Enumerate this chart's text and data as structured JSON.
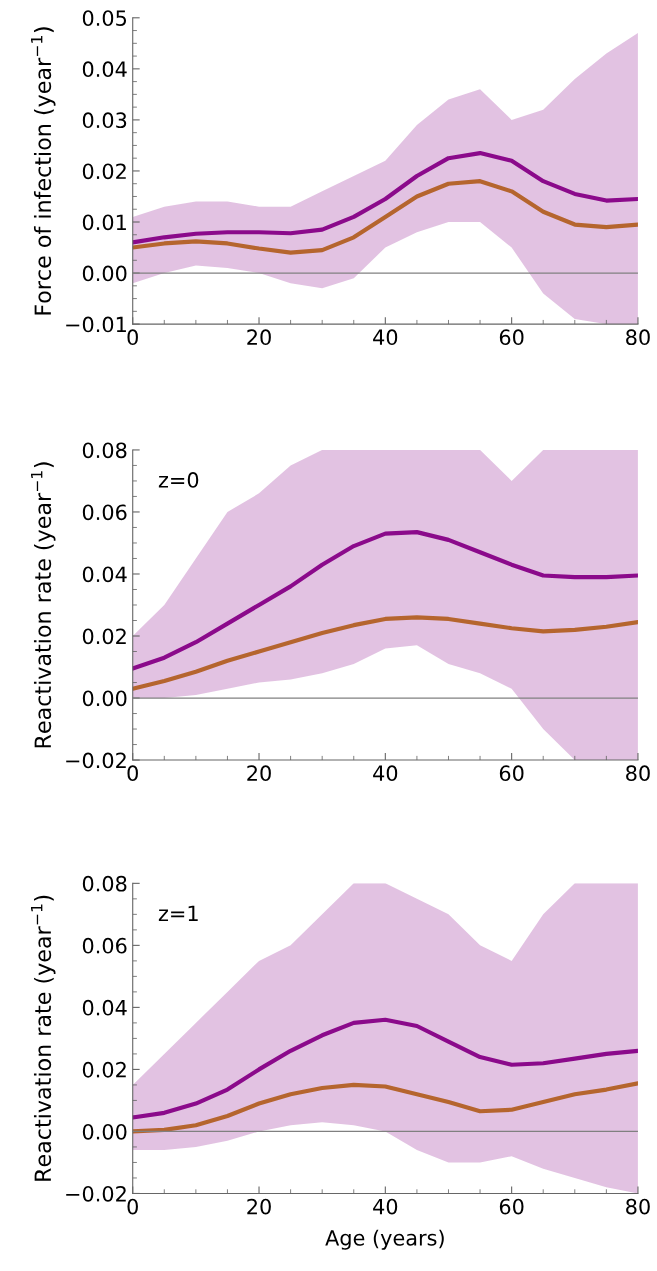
{
  "chart_data": [
    {
      "type": "line",
      "ylabel": "Force of infection (year$^{−1}$)",
      "x": [
        0,
        5,
        10,
        15,
        20,
        25,
        30,
        35,
        40,
        45,
        50,
        55,
        60,
        65,
        70,
        75,
        80
      ],
      "series": [
        {
          "color": "#8b0a8b",
          "values": [
            0.006,
            0.007,
            0.0077,
            0.008,
            0.008,
            0.0078,
            0.0085,
            0.011,
            0.0145,
            0.019,
            0.0225,
            0.0235,
            0.022,
            0.018,
            0.0155,
            0.0142,
            0.0145
          ],
          "lower": [
            -0.002,
            0.0,
            0.0015,
            0.001,
            0.0,
            -0.002,
            -0.003,
            -0.001,
            0.005,
            0.008,
            0.01,
            0.01,
            0.005,
            -0.004,
            -0.009,
            -0.01,
            -0.01
          ],
          "upper": [
            0.011,
            0.013,
            0.014,
            0.014,
            0.013,
            0.013,
            0.016,
            0.019,
            0.022,
            0.029,
            0.034,
            0.036,
            0.03,
            0.032,
            0.038,
            0.043,
            0.047
          ]
        },
        {
          "color": "#b5652e",
          "values": [
            0.005,
            0.0058,
            0.0062,
            0.0058,
            0.0048,
            0.004,
            0.0045,
            0.007,
            0.011,
            0.015,
            0.0175,
            0.018,
            0.016,
            0.012,
            0.0095,
            0.009,
            0.0095
          ]
        }
      ],
      "xlim": [
        0,
        80
      ],
      "xticks": [
        0,
        20,
        40,
        60,
        80
      ],
      "ylim": [
        -0.01,
        0.05
      ],
      "yticks": [
        {
          "value": -0.01,
          "label": "−0.01"
        },
        {
          "value": 0,
          "label": "0.00"
        },
        {
          "value": 0.01,
          "label": "0.01"
        },
        {
          "value": 0.02,
          "label": "0.02"
        },
        {
          "value": 0.03,
          "label": "0.03"
        },
        {
          "value": 0.04,
          "label": "0.04"
        },
        {
          "value": 0.05,
          "label": "0.05"
        }
      ],
      "ref_lines": [
        {
          "axis": "y",
          "value": 0,
          "color": "#808080"
        }
      ]
    },
    {
      "type": "line",
      "ylabel": "Reactivation rate (year$^{−1}$)",
      "annotations": [
        "z=0"
      ],
      "x": [
        0,
        5,
        10,
        15,
        20,
        25,
        30,
        35,
        40,
        45,
        50,
        55,
        60,
        65,
        70,
        75,
        80
      ],
      "series": [
        {
          "color": "#8b0a8b",
          "values": [
            0.0095,
            0.013,
            0.018,
            0.024,
            0.03,
            0.036,
            0.043,
            0.049,
            0.053,
            0.0535,
            0.051,
            0.047,
            0.043,
            0.0395,
            0.039,
            0.039,
            0.0395
          ],
          "lower": [
            0.0,
            0.0,
            0.001,
            0.003,
            0.005,
            0.006,
            0.008,
            0.011,
            0.016,
            0.017,
            0.011,
            0.008,
            0.003,
            -0.01,
            -0.02,
            -0.02,
            -0.02
          ],
          "upper": [
            0.02,
            0.03,
            0.045,
            0.06,
            0.066,
            0.075,
            0.08,
            0.08,
            0.08,
            0.08,
            0.08,
            0.08,
            0.07,
            0.08,
            0.08,
            0.08,
            0.08
          ]
        },
        {
          "color": "#b5652e",
          "values": [
            0.003,
            0.0055,
            0.0085,
            0.012,
            0.015,
            0.018,
            0.021,
            0.0235,
            0.0255,
            0.026,
            0.0255,
            0.024,
            0.0225,
            0.0215,
            0.022,
            0.023,
            0.0245
          ]
        }
      ],
      "xlim": [
        0,
        80
      ],
      "xticks": [
        0,
        20,
        40,
        60,
        80
      ],
      "ylim": [
        -0.02,
        0.08
      ],
      "yticks": [
        {
          "value": -0.02,
          "label": "−0.02"
        },
        {
          "value": 0,
          "label": "0.00"
        },
        {
          "value": 0.02,
          "label": "0.02"
        },
        {
          "value": 0.04,
          "label": "0.04"
        },
        {
          "value": 0.06,
          "label": "0.06"
        },
        {
          "value": 0.08,
          "label": "0.08"
        }
      ],
      "ref_lines": [
        {
          "axis": "y",
          "value": 0,
          "color": "#808080"
        }
      ]
    },
    {
      "type": "line",
      "ylabel": "Reactivation rate (year$^{−1}$)",
      "xlabel": "Age (years)",
      "annotations": [
        "z=1"
      ],
      "x": [
        0,
        5,
        10,
        15,
        20,
        25,
        30,
        35,
        40,
        45,
        50,
        55,
        60,
        65,
        70,
        75,
        80
      ],
      "series": [
        {
          "color": "#8b0a8b",
          "values": [
            0.0045,
            0.006,
            0.009,
            0.0135,
            0.02,
            0.026,
            0.031,
            0.035,
            0.036,
            0.034,
            0.029,
            0.024,
            0.0215,
            0.022,
            0.0235,
            0.025,
            0.026
          ],
          "lower": [
            -0.006,
            -0.006,
            -0.005,
            -0.003,
            0.0,
            0.002,
            0.003,
            0.002,
            0.0,
            -0.006,
            -0.01,
            -0.01,
            -0.008,
            -0.012,
            -0.015,
            -0.018,
            -0.02
          ],
          "upper": [
            0.015,
            0.025,
            0.035,
            0.045,
            0.055,
            0.06,
            0.07,
            0.08,
            0.08,
            0.075,
            0.07,
            0.06,
            0.055,
            0.07,
            0.08,
            0.08,
            0.08
          ]
        },
        {
          "color": "#b5652e",
          "values": [
            0.0,
            0.0005,
            0.002,
            0.005,
            0.009,
            0.012,
            0.014,
            0.015,
            0.0145,
            0.012,
            0.0095,
            0.0065,
            0.007,
            0.0095,
            0.012,
            0.0135,
            0.0155
          ]
        }
      ],
      "xlim": [
        0,
        80
      ],
      "xticks": [
        0,
        20,
        40,
        60,
        80
      ],
      "ylim": [
        -0.02,
        0.08
      ],
      "yticks": [
        {
          "value": -0.02,
          "label": "−0.02"
        },
        {
          "value": 0,
          "label": "0.00"
        },
        {
          "value": 0.02,
          "label": "0.02"
        },
        {
          "value": 0.04,
          "label": "0.04"
        },
        {
          "value": 0.06,
          "label": "0.06"
        },
        {
          "value": 0.08,
          "label": "0.08"
        }
      ],
      "ref_lines": [
        {
          "axis": "y",
          "value": 0,
          "color": "#808080"
        }
      ]
    }
  ]
}
